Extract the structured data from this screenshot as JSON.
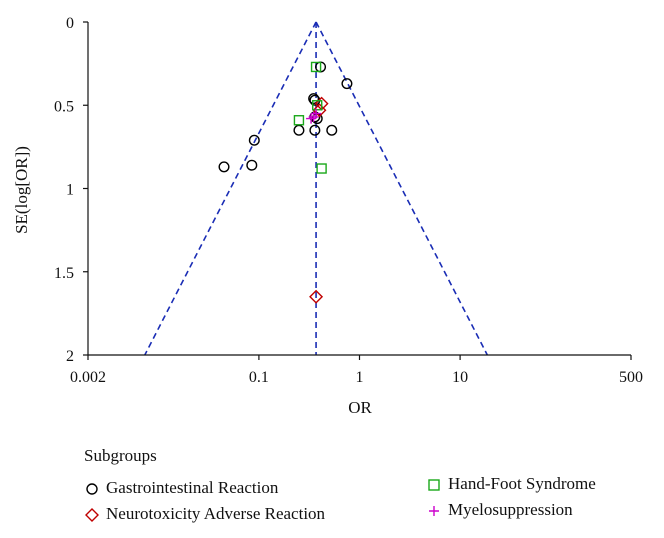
{
  "chart_data": {
    "type": "scatter",
    "subtype": "funnel-plot",
    "xlabel": "OR",
    "ylabel": "SE(log[OR])",
    "x_scale": "log",
    "xlim": [
      0.002,
      500
    ],
    "ylim": [
      2,
      0
    ],
    "y_reversed": true,
    "x_ticks": [
      "0.002",
      "0.1",
      "1",
      "10",
      "500"
    ],
    "x_tick_values": [
      0.002,
      0.1,
      1,
      10,
      500
    ],
    "y_ticks": [
      "0",
      "0.5",
      "1",
      "1.5",
      "2"
    ],
    "y_tick_values": [
      0,
      0.5,
      1,
      1.5,
      2
    ],
    "pooled_or": 0.37,
    "grid": false,
    "legend_placement": "bottom",
    "legend_title": "Subgroups",
    "series": [
      {
        "name": "Gastrointestinal Reaction",
        "marker": "circle",
        "color": "#000000",
        "points": [
          {
            "or": 0.41,
            "se": 0.27
          },
          {
            "or": 0.75,
            "se": 0.37
          },
          {
            "or": 0.35,
            "se": 0.46
          },
          {
            "or": 0.36,
            "se": 0.47
          },
          {
            "or": 0.36,
            "se": 0.57
          },
          {
            "or": 0.38,
            "se": 0.58
          },
          {
            "or": 0.25,
            "se": 0.65
          },
          {
            "or": 0.36,
            "se": 0.65
          },
          {
            "or": 0.53,
            "se": 0.65
          },
          {
            "or": 0.09,
            "se": 0.71
          },
          {
            "or": 0.045,
            "se": 0.87
          },
          {
            "or": 0.085,
            "se": 0.86
          }
        ]
      },
      {
        "name": "Neurotoxicity Adverse Reaction",
        "marker": "diamond",
        "color": "#c00000",
        "points": [
          {
            "or": 0.42,
            "se": 0.49
          },
          {
            "or": 0.4,
            "se": 0.53
          },
          {
            "or": 0.37,
            "se": 1.65
          }
        ]
      },
      {
        "name": "Hand-Foot Syndrome",
        "marker": "square",
        "color": "#1aa81a",
        "points": [
          {
            "or": 0.37,
            "se": 0.27
          },
          {
            "or": 0.25,
            "se": 0.59
          },
          {
            "or": 0.42,
            "se": 0.88
          },
          {
            "or": 0.38,
            "se": 0.5
          }
        ]
      },
      {
        "name": "Myelosuppression",
        "marker": "plus",
        "color": "#cc00cc",
        "points": [
          {
            "or": 0.37,
            "se": 0.55
          },
          {
            "or": 0.35,
            "se": 0.57
          },
          {
            "or": 0.33,
            "se": 0.58
          }
        ]
      }
    ]
  }
}
